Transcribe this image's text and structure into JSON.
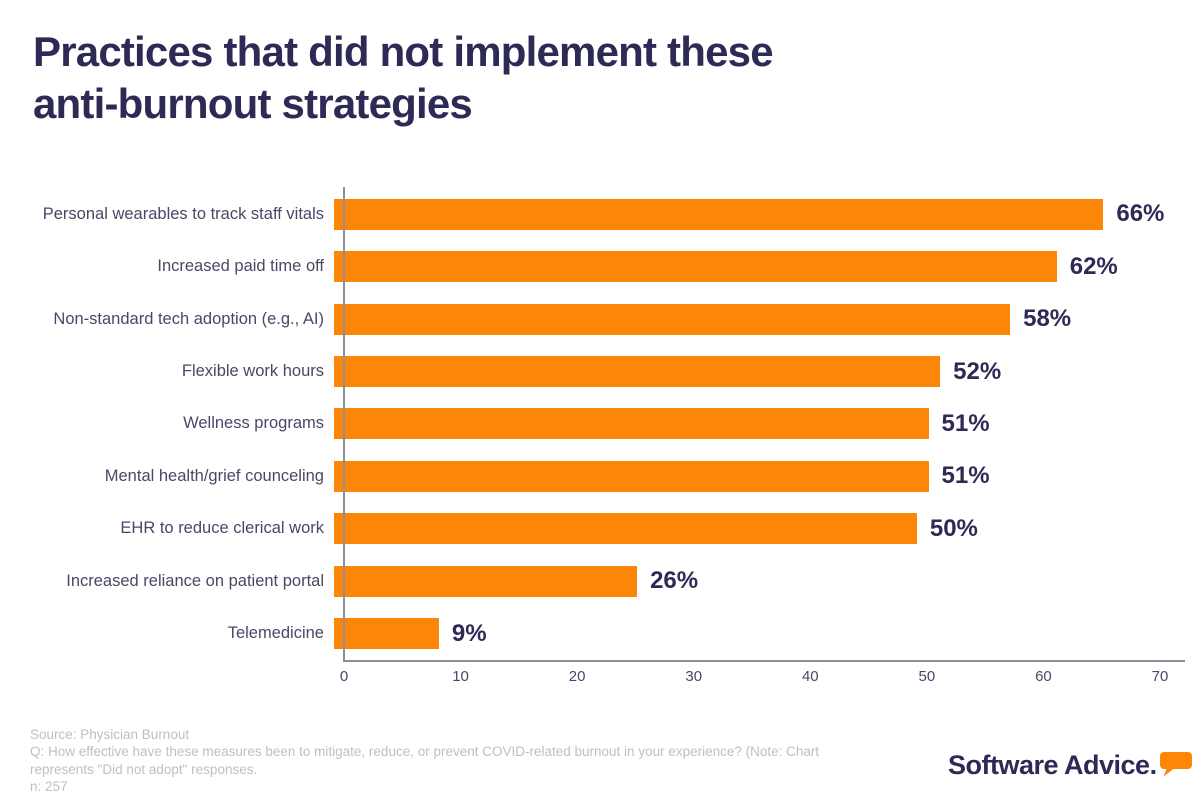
{
  "title": {
    "line1": "Practices that did not implement these",
    "line2": "anti-burnout strategies"
  },
  "chart_data": {
    "type": "bar",
    "orientation": "horizontal",
    "categories": [
      "Personal wearables to track staff vitals",
      "Increased paid time off",
      "Non-standard tech adoption (e.g., AI)",
      "Flexible work hours",
      "Wellness programs",
      "Mental health/grief counceling",
      "EHR to reduce clerical work",
      "Increased reliance on patient portal",
      "Telemedicine"
    ],
    "values": [
      66,
      62,
      58,
      52,
      51,
      51,
      50,
      26,
      9
    ],
    "value_labels": [
      "66%",
      "62%",
      "58%",
      "52%",
      "51%",
      "51%",
      "50%",
      "26%",
      "9%"
    ],
    "xlim": [
      0,
      70
    ],
    "xticks": [
      0,
      10,
      20,
      30,
      40,
      50,
      60,
      70
    ],
    "xlabel": "",
    "ylabel": "",
    "grid": false,
    "legend": null,
    "bar_color": "#fb8608",
    "value_label_color": "#2d2a55",
    "category_label_color": "#4a4766",
    "axis_color": "#8f8e99"
  },
  "footer": {
    "source": "Source: Physician Burnout",
    "question": "Q: How effective have these measures been to mitigate, reduce, or prevent COVID-related burnout in your experience? (Note: Chart represents \"Did not adopt\" responses.",
    "sample": "n: 257"
  },
  "branding": {
    "logo_text": "Software Advice.",
    "bubble_color": "#fb8608",
    "text_color": "#2d2a55"
  }
}
